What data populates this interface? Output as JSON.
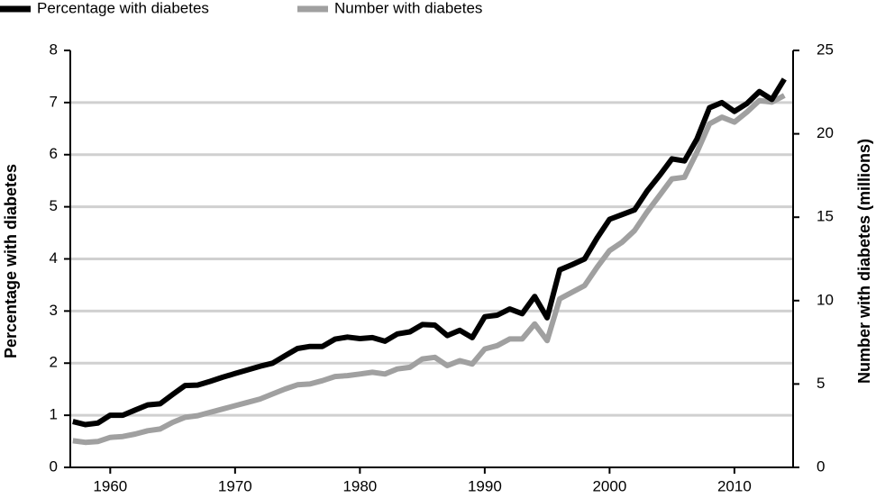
{
  "chart_data": {
    "type": "line",
    "x": [
      1957,
      1958,
      1959,
      1960,
      1961,
      1962,
      1963,
      1964,
      1965,
      1966,
      1967,
      1968,
      1969,
      1970,
      1971,
      1972,
      1973,
      1974,
      1975,
      1976,
      1977,
      1978,
      1979,
      1980,
      1981,
      1982,
      1983,
      1984,
      1985,
      1986,
      1987,
      1988,
      1989,
      1990,
      1991,
      1992,
      1993,
      1994,
      1995,
      1996,
      1997,
      1998,
      1999,
      2000,
      2001,
      2002,
      2003,
      2004,
      2005,
      2006,
      2007,
      2008,
      2009,
      2010,
      2011,
      2012,
      2013,
      2014
    ],
    "series": [
      {
        "name": "Percentage with diabetes",
        "color": "#000000",
        "values": [
          0.88,
          0.82,
          0.85,
          1.0,
          1.0,
          1.1,
          1.2,
          1.22,
          1.4,
          1.57,
          1.58,
          1.65,
          1.73,
          1.8,
          1.87,
          1.94,
          2.0,
          2.14,
          2.28,
          2.32,
          2.32,
          2.46,
          2.5,
          2.47,
          2.49,
          2.42,
          2.56,
          2.6,
          2.74,
          2.73,
          2.53,
          2.63,
          2.49,
          2.89,
          2.92,
          3.04,
          2.95,
          3.28,
          2.87,
          3.79,
          3.89,
          4.0,
          4.4,
          4.76,
          4.85,
          4.94,
          5.3,
          5.6,
          5.92,
          5.88,
          6.3,
          6.9,
          7.0,
          6.83,
          6.98,
          7.21,
          7.06,
          7.45
        ]
      },
      {
        "name": "Number with diabetes",
        "color": "#a0a0a0",
        "axis": "y2",
        "values": [
          1.6,
          1.5,
          1.55,
          1.8,
          1.85,
          2.0,
          2.2,
          2.3,
          2.7,
          3.0,
          3.1,
          3.3,
          3.5,
          3.7,
          3.9,
          4.1,
          4.4,
          4.7,
          4.95,
          5.0,
          5.2,
          5.45,
          5.5,
          5.6,
          5.7,
          5.6,
          5.9,
          6.0,
          6.5,
          6.6,
          6.1,
          6.4,
          6.2,
          7.1,
          7.3,
          7.7,
          7.7,
          8.6,
          7.6,
          10.1,
          10.5,
          10.9,
          12.0,
          13.0,
          13.5,
          14.2,
          15.3,
          16.3,
          17.3,
          17.4,
          18.9,
          20.6,
          21.0,
          20.7,
          21.3,
          22.0,
          21.9,
          22.3
        ]
      }
    ],
    "y_label": "Percentage with diabetes",
    "y2_label": "Number with diabetes (millions)",
    "xlim": [
      1956.8,
      2014.7
    ],
    "xticks": [
      1960,
      1970,
      1980,
      1990,
      2000,
      2010
    ],
    "ylim": [
      0,
      8
    ],
    "yticks": [
      0,
      1,
      2,
      3,
      4,
      5,
      6,
      7,
      8
    ],
    "y2lim": [
      0,
      25
    ],
    "y2ticks": [
      0,
      5,
      10,
      15,
      20,
      25
    ],
    "grid": true,
    "legend": "top"
  }
}
